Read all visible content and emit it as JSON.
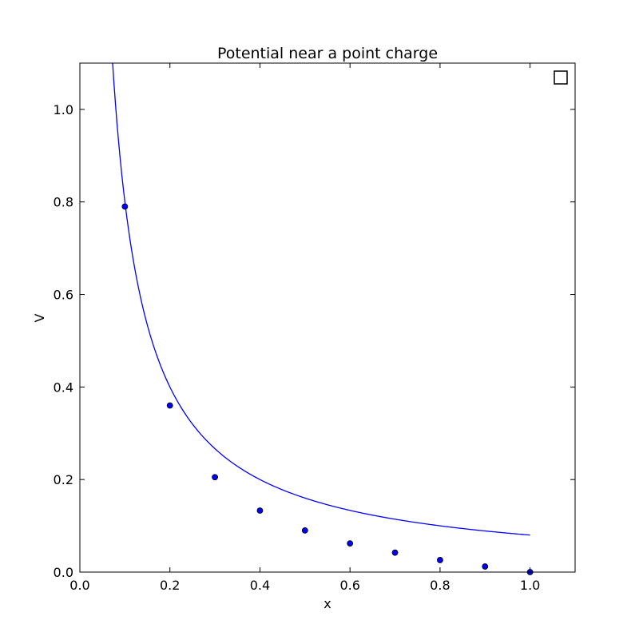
{
  "chart_data": {
    "type": "scatter",
    "title": "Potential near a point charge",
    "xlabel": "x",
    "ylabel": "V",
    "xlim": [
      0.0,
      1.1
    ],
    "ylim": [
      0.0,
      1.1
    ],
    "xticks": [
      0.0,
      0.2,
      0.4,
      0.6,
      0.8,
      1.0
    ],
    "xtick_labels": [
      "0.0",
      "0.2",
      "0.4",
      "0.6",
      "0.8",
      "1.0"
    ],
    "yticks": [
      0.0,
      0.2,
      0.4,
      0.6,
      0.8,
      1.0
    ],
    "ytick_labels": [
      "0.0",
      "0.2",
      "0.4",
      "0.6",
      "0.8",
      "1.0"
    ],
    "grid": false,
    "legend": {
      "placement": "top-right",
      "entries": []
    },
    "series": [
      {
        "kind": "line",
        "color": "#0000ff",
        "formula": "V = 0.08 / x",
        "x_range": [
          0.07,
          1.0
        ]
      },
      {
        "kind": "scatter",
        "color": "#0000ff",
        "x": [
          0.1,
          0.2,
          0.3,
          0.4,
          0.5,
          0.6,
          0.7,
          0.8,
          0.9,
          1.0
        ],
        "y": [
          0.79,
          0.36,
          0.205,
          0.133,
          0.09,
          0.062,
          0.042,
          0.026,
          0.012,
          0.0
        ]
      }
    ]
  }
}
